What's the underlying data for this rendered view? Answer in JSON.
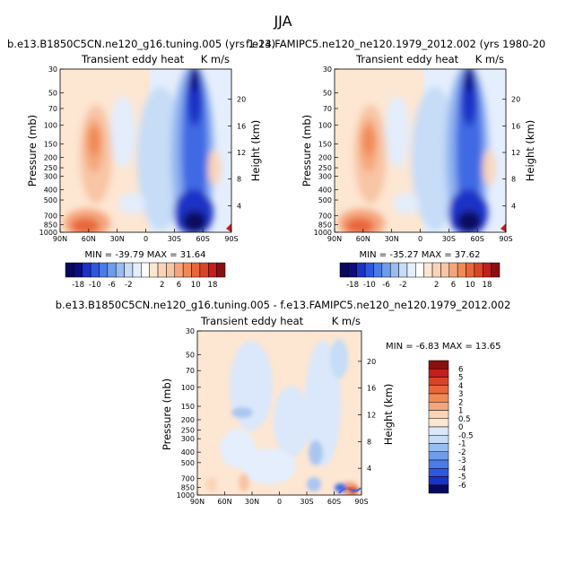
{
  "page": {
    "title": "JJA",
    "top_titles": {
      "left": "b.e13.B1850C5CN.ne120_g16.tuning.005 (yrs 1-24)",
      "right": "f.e13.FAMIPC5.ne120_ne120.1979_2012.002 (yrs 1980-20"
    },
    "bottom_title": "b.e13.B1850C5CN.ne120_g16.tuning.005 - f.e13.FAMIPC5.ne120_ne120.1979_2012.002"
  },
  "colors": {
    "blue_dark": "#08085e",
    "blue": "#1f3fd6",
    "blue_light": "#c6dcf7",
    "cream": "#fde6d2",
    "orange": "#f08a55",
    "red_dark": "#8a0f0f"
  },
  "chart_data": [
    {
      "type": "heatmap",
      "name": "model-panel",
      "title": "b.e13.B1850C5CN.ne120_g16.tuning.005 (yrs 1-24)",
      "left_string": "Transient eddy heat",
      "right_string": "K m/s",
      "ylabel": "Pressure (mb)",
      "ylabel_right": "Height (km)",
      "x_ticks": [
        "90N",
        "60N",
        "30N",
        "0",
        "30S",
        "60S",
        "90S"
      ],
      "y_ticks": [
        "30",
        "50",
        "70",
        "100",
        "150",
        "200",
        "250",
        "300",
        "400",
        "500",
        "700",
        "850",
        "1000"
      ],
      "height_ticks": [
        "4",
        "8",
        "12",
        "16",
        "20"
      ],
      "min_max": "MIN = -39.79   MAX =  31.64",
      "colorbar_labels": [
        "-18",
        "-10",
        "-6",
        "-2",
        "2",
        "6",
        "10",
        "18"
      ]
    },
    {
      "type": "heatmap",
      "name": "obs-panel",
      "title": "f.e13.FAMIPC5.ne120_ne120.1979_2012.002 (yrs 1980-20",
      "left_string": "Transient eddy heat",
      "right_string": "K m/s",
      "ylabel": "Pressure (mb)",
      "ylabel_right": "Height (km)",
      "x_ticks": [
        "90N",
        "60N",
        "30N",
        "0",
        "30S",
        "60S",
        "90S"
      ],
      "y_ticks": [
        "30",
        "50",
        "70",
        "100",
        "150",
        "200",
        "250",
        "300",
        "400",
        "500",
        "700",
        "850",
        "1000"
      ],
      "height_ticks": [
        "4",
        "8",
        "12",
        "16",
        "20"
      ],
      "min_max": "MIN = -35.27   MAX =  37.62",
      "colorbar_labels": [
        "-18",
        "-10",
        "-6",
        "-2",
        "2",
        "6",
        "10",
        "18"
      ]
    },
    {
      "type": "heatmap",
      "name": "difference-panel",
      "title": "b.e13.B1850C5CN.ne120_g16.tuning.005 - f.e13.FAMIPC5.ne120_ne120.1979_2012.002",
      "left_string": "Transient eddy heat",
      "right_string": "K m/s",
      "ylabel": "Pressure (mb)",
      "ylabel_right": "Height (km)",
      "x_ticks": [
        "90N",
        "60N",
        "30N",
        "0",
        "30S",
        "60S",
        "90S"
      ],
      "y_ticks": [
        "30",
        "50",
        "70",
        "100",
        "150",
        "200",
        "250",
        "300",
        "400",
        "500",
        "700",
        "850",
        "1000"
      ],
      "height_ticks": [
        "4",
        "8",
        "12",
        "16",
        "20"
      ],
      "min_max": "MIN =   -6.83   MAX =  13.65",
      "colorbar_labels": [
        "6",
        "5",
        "4",
        "3",
        "2",
        "1",
        "0.5",
        "0",
        "-0.5",
        "-1",
        "-2",
        "-3",
        "-4",
        "-5",
        "-6"
      ]
    }
  ]
}
